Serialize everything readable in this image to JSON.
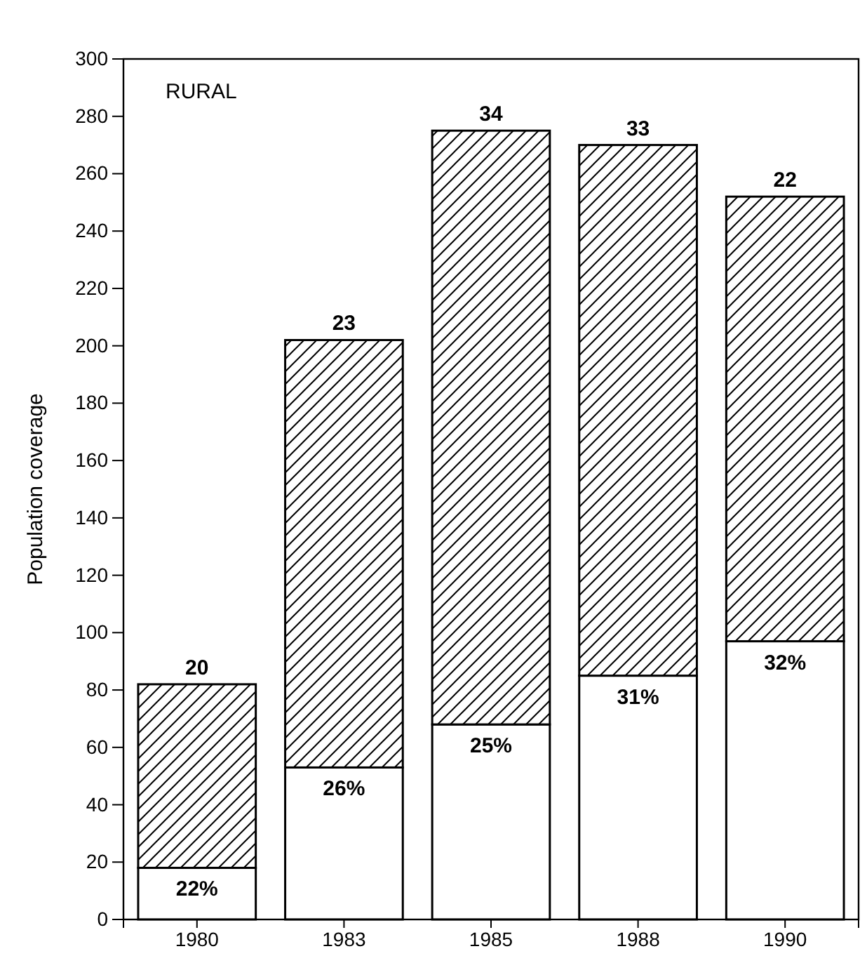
{
  "chart_data": {
    "type": "bar",
    "stacked": true,
    "ylabel": "Population coverage",
    "categories": [
      "1980",
      "1983",
      "1985",
      "1988",
      "1990"
    ],
    "series": [
      {
        "color": "#ffffff",
        "values": [
          18,
          53,
          68,
          85,
          97
        ]
      },
      {
        "color": "#000000",
        "values": [
          64,
          149,
          207,
          185,
          155
        ]
      }
    ],
    "ylim": [
      0,
      300
    ],
    "yticks": [
      0,
      20,
      40,
      60,
      80,
      100,
      120,
      140,
      160,
      180,
      200,
      220,
      240,
      260,
      280,
      300
    ],
    "grid": false,
    "annotations": [
      "RURAL",
      {
        "text": "20",
        "x": "1980",
        "y": 82
      },
      {
        "text": "23",
        "x": "1983",
        "y": 202
      },
      {
        "text": "34",
        "x": "1985",
        "y": 275
      },
      {
        "text": "33",
        "x": "1988",
        "y": 270
      },
      {
        "text": "22",
        "x": "1990",
        "y": 252
      },
      {
        "text": "22%",
        "x": "1980",
        "y": 18
      },
      {
        "text": "26%",
        "x": "1983",
        "y": 53
      },
      {
        "text": "25%",
        "x": "1985",
        "y": 68
      },
      {
        "text": "31%",
        "x": "1988",
        "y": 85
      },
      {
        "text": "32%",
        "x": "1990",
        "y": 97
      }
    ]
  }
}
